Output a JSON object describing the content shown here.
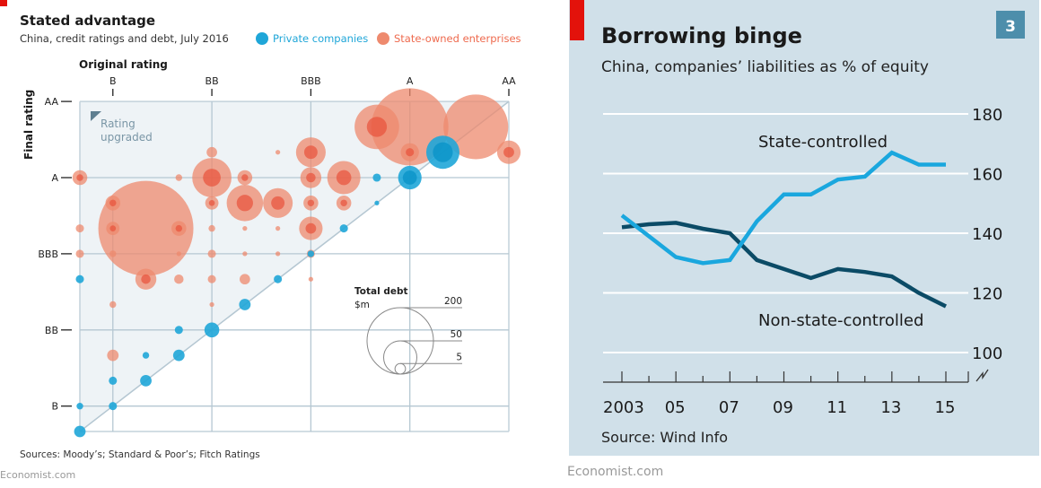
{
  "chart_data": [
    {
      "type": "scatter",
      "title": "Stated advantage",
      "subtitle": "China, credit ratings and debt, July 2016",
      "xlabel": "Original rating",
      "ylabel": "Final rating",
      "x_ticks": [
        "B",
        "BB",
        "BBB",
        "A",
        "AA"
      ],
      "y_ticks": [
        "AA",
        "A",
        "BBB",
        "BB",
        "B"
      ],
      "notch_scale": "notches 0-13, B=1, BB=4, BBB=7, A=10, AA=13",
      "annotation": [
        "Rating",
        "upgraded"
      ],
      "legend": [
        {
          "name": "Private companies",
          "color": "#1fa6d8"
        },
        {
          "name": "State-owned enterprises",
          "color": "#ee8a6e"
        }
      ],
      "size_legend": {
        "title": "Total debt",
        "unit": "$m",
        "values": [
          200,
          50,
          5
        ]
      },
      "series": [
        {
          "name": "State-owned enterprises",
          "points": [
            {
              "x": 0,
              "y": 10,
              "debt": 10
            },
            {
              "x": 1,
              "y": 9,
              "debt": 10
            },
            {
              "x": 2,
              "y": 8,
              "debt": 410
            },
            {
              "x": 0,
              "y": 8,
              "debt": 3
            },
            {
              "x": 1,
              "y": 8,
              "debt": 8
            },
            {
              "x": 3,
              "y": 8,
              "debt": 10
            },
            {
              "x": 0,
              "y": 7,
              "debt": 3
            },
            {
              "x": 1,
              "y": 7,
              "debt": 2
            },
            {
              "x": 3,
              "y": 10,
              "debt": 2
            },
            {
              "x": 4,
              "y": 11,
              "debt": 5
            },
            {
              "x": 4,
              "y": 10,
              "debt": 70
            },
            {
              "x": 4,
              "y": 9,
              "debt": 8
            },
            {
              "x": 4,
              "y": 8,
              "debt": 2
            },
            {
              "x": 4,
              "y": 7,
              "debt": 3
            },
            {
              "x": 5,
              "y": 10,
              "debt": 10
            },
            {
              "x": 5,
              "y": 9,
              "debt": 60
            },
            {
              "x": 5,
              "y": 8,
              "debt": 1
            },
            {
              "x": 6,
              "y": 11,
              "debt": 1
            },
            {
              "x": 6,
              "y": 9,
              "debt": 40
            },
            {
              "x": 6,
              "y": 8,
              "debt": 1
            },
            {
              "x": 7,
              "y": 11,
              "debt": 40
            },
            {
              "x": 7,
              "y": 10,
              "debt": 20
            },
            {
              "x": 7,
              "y": 9,
              "debt": 10
            },
            {
              "x": 7,
              "y": 8,
              "debt": 25
            },
            {
              "x": 7,
              "y": 7,
              "debt": 3
            },
            {
              "x": 8,
              "y": 10,
              "debt": 50
            },
            {
              "x": 8,
              "y": 9,
              "debt": 10
            },
            {
              "x": 2,
              "y": 6,
              "debt": 20
            },
            {
              "x": 3,
              "y": 6,
              "debt": 4
            },
            {
              "x": 4,
              "y": 6,
              "debt": 3
            },
            {
              "x": 5,
              "y": 6,
              "debt": 5
            },
            {
              "x": 1,
              "y": 5,
              "debt": 2
            },
            {
              "x": 4,
              "y": 5,
              "debt": 1
            },
            {
              "x": 1,
              "y": 3,
              "debt": 6
            },
            {
              "x": 9,
              "y": 12,
              "debt": 90
            },
            {
              "x": 10,
              "y": 12,
              "debt": 270
            },
            {
              "x": 10,
              "y": 11,
              "debt": 15
            },
            {
              "x": 12,
              "y": 12,
              "debt": 190
            },
            {
              "x": 13,
              "y": 11,
              "debt": 25
            },
            {
              "x": 3,
              "y": 7,
              "debt": 1
            },
            {
              "x": 5,
              "y": 7,
              "debt": 1
            },
            {
              "x": 6,
              "y": 7,
              "debt": 1
            },
            {
              "x": 7,
              "y": 6,
              "debt": 1
            }
          ]
        },
        {
          "name": "Private companies",
          "points": [
            {
              "x": 0,
              "y": 0,
              "debt": 6
            },
            {
              "x": 0,
              "y": 1,
              "debt": 2
            },
            {
              "x": 1,
              "y": 1,
              "debt": 3
            },
            {
              "x": 1,
              "y": 2,
              "debt": 3
            },
            {
              "x": 2,
              "y": 2,
              "debt": 6
            },
            {
              "x": 2,
              "y": 3,
              "debt": 2
            },
            {
              "x": 3,
              "y": 3,
              "debt": 6
            },
            {
              "x": 3,
              "y": 4,
              "debt": 3
            },
            {
              "x": 4,
              "y": 4,
              "debt": 10
            },
            {
              "x": 5,
              "y": 5,
              "debt": 6
            },
            {
              "x": 0,
              "y": 6,
              "debt": 3
            },
            {
              "x": 6,
              "y": 6,
              "debt": 3
            },
            {
              "x": 7,
              "y": 7,
              "debt": 2
            },
            {
              "x": 8,
              "y": 8,
              "debt": 3
            },
            {
              "x": 9,
              "y": 9,
              "debt": 1
            },
            {
              "x": 9,
              "y": 10,
              "debt": 3
            },
            {
              "x": 10,
              "y": 10,
              "debt": 25
            },
            {
              "x": 11,
              "y": 11,
              "debt": 50
            }
          ]
        }
      ],
      "source": "Sources: Moody’s; Standard & Poor’s; Fitch Ratings",
      "footer": "Economist.com"
    },
    {
      "type": "line",
      "title": "Borrowing binge",
      "subtitle": "China, companies’ liabilities as % of equity",
      "badge": "3",
      "x": [
        2003,
        2004,
        2005,
        2006,
        2007,
        2008,
        2009,
        2010,
        2011,
        2012,
        2013,
        2014,
        2015
      ],
      "x_tick_labels": [
        "2003",
        "05",
        "07",
        "09",
        "11",
        "13",
        "15"
      ],
      "y_ticks": [
        100,
        120,
        140,
        160,
        180
      ],
      "ylim": [
        100,
        180
      ],
      "series": [
        {
          "name": "State-controlled",
          "color": "#1aa7de",
          "values": [
            146,
            139,
            132,
            130,
            131,
            144,
            153,
            153,
            158,
            159,
            167,
            163,
            163
          ]
        },
        {
          "name": "Non-state-controlled",
          "color": "#0b4b66",
          "values": [
            142,
            143,
            143.5,
            141.5,
            140,
            131,
            128,
            125,
            128,
            127,
            125.5,
            120,
            115.5
          ]
        }
      ],
      "grid": true,
      "source": "Source: Wind Info",
      "footer": "Economist.com"
    }
  ],
  "left": {
    "title": "Stated advantage",
    "subtitle": "China, credit ratings and debt, July 2016",
    "legend_private": "Private companies",
    "legend_soe": "State-owned enterprises",
    "xlabel": "Original rating",
    "ylabel": "Final rating",
    "annot1": "Rating",
    "annot2": "upgraded",
    "size_title": "Total debt",
    "size_unit": "$m",
    "source": "Sources: Moody’s; Standard & Poor’s; Fitch Ratings",
    "footer": "Economist.com"
  },
  "right": {
    "title": "Borrowing binge",
    "subtitle": "China, companies’ liabilities as % of equity",
    "badge": "3",
    "label_state": "State-controlled",
    "label_nonstate": "Non-state-controlled",
    "source": "Source: Wind Info",
    "footer": "Economist.com"
  },
  "colors": {
    "private": "#1fa6d8",
    "soe": "#ee8a6e",
    "soe_dark": "#e8513a",
    "accent_red": "#e3120b",
    "right_bg": "#d0e0e9",
    "badge_bg": "#4d8eab"
  }
}
